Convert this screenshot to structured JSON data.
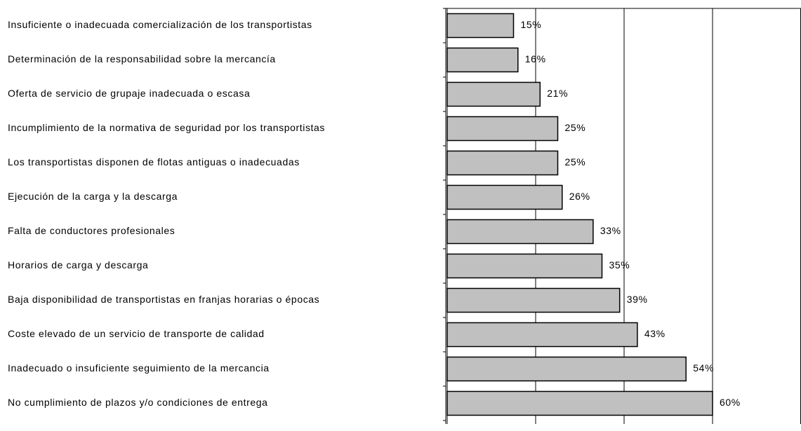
{
  "chart_data": {
    "type": "barh",
    "categories": [
      "Insuficiente o inadecuada comercialización de los transportistas",
      "Determinación de la responsabilidad sobre la mercancía",
      "Oferta de servicio de grupaje inadecuada o escasa",
      "Incumplimiento de la normativa de seguridad por los transportistas",
      "Los transportistas disponen de flotas antiguas o inadecuadas",
      "Ejecución de la carga y la descarga",
      "Falta de conductores profesionales",
      "Horarios de carga y descarga",
      "Baja disponibilidad de transportistas en franjas horarias o épocas",
      "Coste elevado de un servicio de transporte de calidad",
      "Inadecuado o insuficiente seguimiento de la mercancia",
      "No cumplimiento de plazos y/o condiciones de entrega"
    ],
    "values": [
      15,
      16,
      21,
      25,
      25,
      26,
      33,
      35,
      39,
      43,
      54,
      60
    ],
    "value_labels": [
      "15%",
      "16%",
      "21%",
      "25%",
      "25%",
      "26%",
      "33%",
      "35%",
      "39%",
      "43%",
      "54%",
      "60%"
    ],
    "color": "#c0c0c0",
    "xlim": [
      0,
      80
    ],
    "xticks": [
      0,
      20,
      40,
      60,
      80
    ],
    "grid": true
  }
}
